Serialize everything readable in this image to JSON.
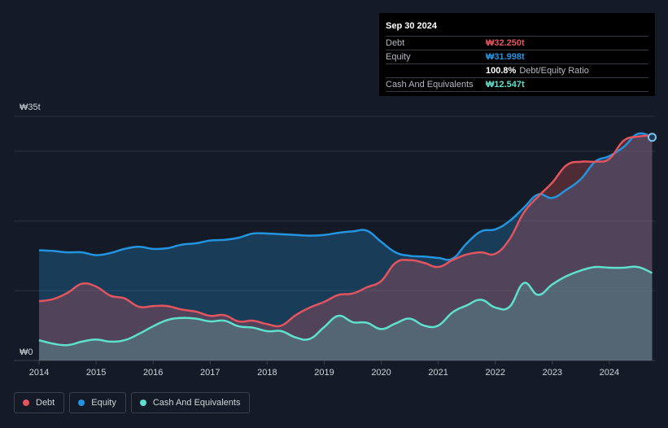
{
  "tooltip": {
    "date": "Sep 30 2024",
    "rows": [
      {
        "label": "Debt",
        "value": "₩32.250t",
        "color": "#e2555f"
      },
      {
        "label": "Equity",
        "value": "₩31.998t",
        "color": "#2394df"
      },
      {
        "label": "",
        "value": "100.8%",
        "suffix": "Debt/Equity Ratio",
        "color": "#ffffff"
      },
      {
        "label": "Cash And Equivalents",
        "value": "₩12.547t",
        "color": "#5fe0cc"
      }
    ]
  },
  "legend": [
    {
      "label": "Debt",
      "color": "#e2555f"
    },
    {
      "label": "Equity",
      "color": "#2394df"
    },
    {
      "label": "Cash And Equivalents",
      "color": "#5fe0cc"
    }
  ],
  "chart_data": {
    "type": "area",
    "title": "",
    "xlabel": "",
    "ylabel": "",
    "ylim": [
      0,
      35
    ],
    "xlim": [
      2014.0,
      2024.8
    ],
    "y_tick_labels": [
      {
        "value": 35,
        "label": "₩35t"
      },
      {
        "value": 0,
        "label": "₩0"
      }
    ],
    "x_tick_labels": [
      "2014",
      "2015",
      "2016",
      "2017",
      "2018",
      "2019",
      "2020",
      "2021",
      "2022",
      "2023",
      "2024"
    ],
    "x_tick_values": [
      2014,
      2015,
      2016,
      2017,
      2018,
      2019,
      2020,
      2021,
      2022,
      2023,
      2024
    ],
    "series": [
      {
        "name": "Equity",
        "color": "#2394df",
        "points": [
          [
            2014.0,
            15.8
          ],
          [
            2014.25,
            15.7
          ],
          [
            2014.5,
            15.5
          ],
          [
            2014.75,
            15.5
          ],
          [
            2015.0,
            15.1
          ],
          [
            2015.25,
            15.4
          ],
          [
            2015.5,
            16.0
          ],
          [
            2015.75,
            16.3
          ],
          [
            2016.0,
            16.0
          ],
          [
            2016.25,
            16.1
          ],
          [
            2016.5,
            16.6
          ],
          [
            2016.75,
            16.8
          ],
          [
            2017.0,
            17.2
          ],
          [
            2017.25,
            17.3
          ],
          [
            2017.5,
            17.6
          ],
          [
            2017.75,
            18.2
          ],
          [
            2018.0,
            18.2
          ],
          [
            2018.25,
            18.1
          ],
          [
            2018.5,
            18.0
          ],
          [
            2018.75,
            17.9
          ],
          [
            2019.0,
            18.0
          ],
          [
            2019.25,
            18.3
          ],
          [
            2019.5,
            18.5
          ],
          [
            2019.75,
            18.6
          ],
          [
            2020.0,
            17.0
          ],
          [
            2020.25,
            15.5
          ],
          [
            2020.5,
            15.0
          ],
          [
            2020.75,
            14.9
          ],
          [
            2021.0,
            14.7
          ],
          [
            2021.25,
            14.6
          ],
          [
            2021.5,
            16.8
          ],
          [
            2021.75,
            18.5
          ],
          [
            2022.0,
            18.8
          ],
          [
            2022.25,
            20.0
          ],
          [
            2022.5,
            21.9
          ],
          [
            2022.75,
            23.8
          ],
          [
            2023.0,
            23.3
          ],
          [
            2023.25,
            24.5
          ],
          [
            2023.5,
            26.0
          ],
          [
            2023.75,
            28.5
          ],
          [
            2024.0,
            29.3
          ],
          [
            2024.25,
            30.6
          ],
          [
            2024.5,
            32.5
          ],
          [
            2024.75,
            31.998
          ]
        ]
      },
      {
        "name": "Debt",
        "color": "#e2555f",
        "points": [
          [
            2014.0,
            8.5
          ],
          [
            2014.25,
            8.8
          ],
          [
            2014.5,
            9.7
          ],
          [
            2014.75,
            11.0
          ],
          [
            2015.0,
            10.6
          ],
          [
            2015.25,
            9.3
          ],
          [
            2015.5,
            8.9
          ],
          [
            2015.75,
            7.7
          ],
          [
            2016.0,
            7.8
          ],
          [
            2016.25,
            7.8
          ],
          [
            2016.5,
            7.3
          ],
          [
            2016.75,
            7.0
          ],
          [
            2017.0,
            6.4
          ],
          [
            2017.25,
            6.5
          ],
          [
            2017.5,
            5.6
          ],
          [
            2017.75,
            5.7
          ],
          [
            2018.0,
            5.2
          ],
          [
            2018.25,
            5.0
          ],
          [
            2018.5,
            6.5
          ],
          [
            2018.75,
            7.6
          ],
          [
            2019.0,
            8.4
          ],
          [
            2019.25,
            9.4
          ],
          [
            2019.5,
            9.6
          ],
          [
            2019.75,
            10.5
          ],
          [
            2020.0,
            11.4
          ],
          [
            2020.25,
            14.0
          ],
          [
            2020.5,
            14.4
          ],
          [
            2020.75,
            14.0
          ],
          [
            2021.0,
            13.4
          ],
          [
            2021.25,
            14.4
          ],
          [
            2021.5,
            15.2
          ],
          [
            2021.75,
            15.5
          ],
          [
            2022.0,
            15.3
          ],
          [
            2022.25,
            17.4
          ],
          [
            2022.5,
            21.2
          ],
          [
            2022.75,
            23.5
          ],
          [
            2023.0,
            25.5
          ],
          [
            2023.25,
            28.0
          ],
          [
            2023.5,
            28.5
          ],
          [
            2023.75,
            28.5
          ],
          [
            2024.0,
            28.9
          ],
          [
            2024.25,
            31.5
          ],
          [
            2024.5,
            32.1
          ],
          [
            2024.75,
            32.25
          ]
        ]
      },
      {
        "name": "Cash And Equivalents",
        "color": "#5fe0cc",
        "points": [
          [
            2014.0,
            2.9
          ],
          [
            2014.25,
            2.4
          ],
          [
            2014.5,
            2.2
          ],
          [
            2014.75,
            2.7
          ],
          [
            2015.0,
            3.0
          ],
          [
            2015.25,
            2.7
          ],
          [
            2015.5,
            2.9
          ],
          [
            2015.75,
            3.8
          ],
          [
            2016.0,
            4.9
          ],
          [
            2016.25,
            5.8
          ],
          [
            2016.5,
            6.1
          ],
          [
            2016.75,
            6.0
          ],
          [
            2017.0,
            5.6
          ],
          [
            2017.25,
            5.7
          ],
          [
            2017.5,
            4.9
          ],
          [
            2017.75,
            4.7
          ],
          [
            2018.0,
            4.2
          ],
          [
            2018.25,
            4.2
          ],
          [
            2018.5,
            3.3
          ],
          [
            2018.75,
            3.1
          ],
          [
            2019.0,
            4.8
          ],
          [
            2019.25,
            6.4
          ],
          [
            2019.5,
            5.5
          ],
          [
            2019.75,
            5.4
          ],
          [
            2020.0,
            4.5
          ],
          [
            2020.25,
            5.3
          ],
          [
            2020.5,
            6.0
          ],
          [
            2020.75,
            5.0
          ],
          [
            2021.0,
            5.0
          ],
          [
            2021.25,
            6.9
          ],
          [
            2021.5,
            7.9
          ],
          [
            2021.75,
            8.7
          ],
          [
            2022.0,
            7.6
          ],
          [
            2022.25,
            7.7
          ],
          [
            2022.5,
            11.1
          ],
          [
            2022.75,
            9.4
          ],
          [
            2023.0,
            10.9
          ],
          [
            2023.25,
            12.1
          ],
          [
            2023.5,
            12.9
          ],
          [
            2023.75,
            13.4
          ],
          [
            2024.0,
            13.3
          ],
          [
            2024.25,
            13.3
          ],
          [
            2024.5,
            13.4
          ],
          [
            2024.75,
            12.547
          ]
        ]
      }
    ]
  }
}
